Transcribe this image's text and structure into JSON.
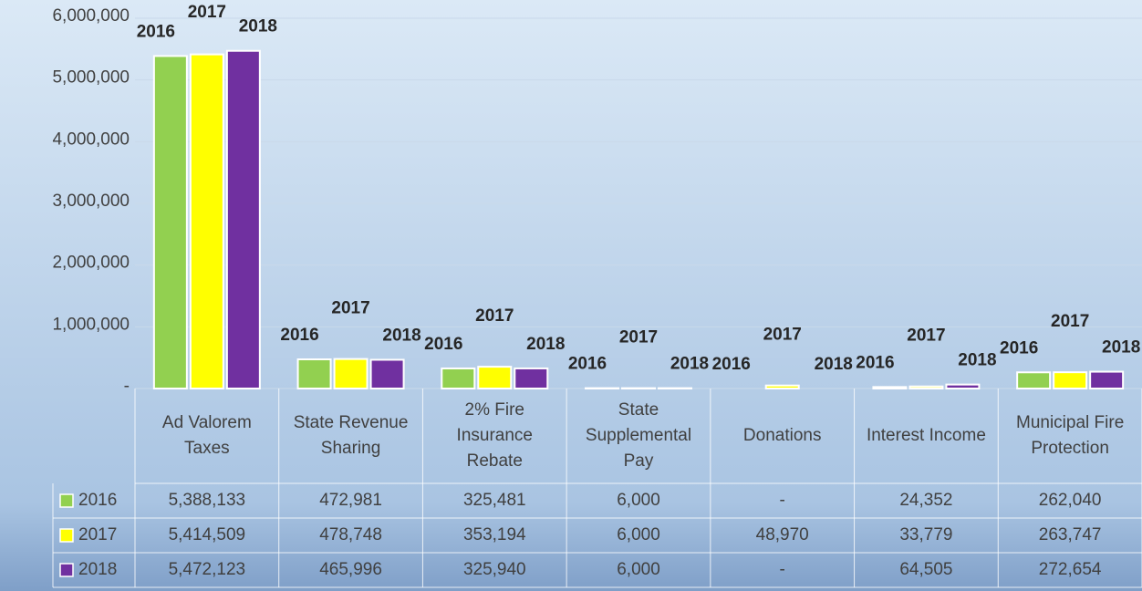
{
  "chart_data": {
    "type": "bar",
    "categories": [
      "Ad Valorem Taxes",
      "State Revenue Sharing",
      "2% Fire Insurance Rebate",
      "State Supplemental Pay",
      "Donations",
      "Interest Income",
      "Municipal Fire Protection"
    ],
    "series": [
      {
        "name": "2016",
        "color": "#92d050",
        "values": [
          5388133,
          472981,
          325481,
          6000,
          0,
          24352,
          262040
        ],
        "value_labels": [
          "5,388,133",
          "472,981",
          "325,481",
          "6,000",
          "-",
          "24,352",
          "262,040"
        ]
      },
      {
        "name": "2017",
        "color": "#ffff00",
        "values": [
          5414509,
          478748,
          353194,
          6000,
          48970,
          33779,
          263747
        ],
        "value_labels": [
          "5,414,509",
          "478,748",
          "353,194",
          "6,000",
          "48,970",
          "33,779",
          "263,747"
        ]
      },
      {
        "name": "2018",
        "color": "#7030a0",
        "values": [
          5472123,
          465996,
          325940,
          6000,
          0,
          64505,
          272654
        ],
        "value_labels": [
          "5,472,123",
          "465,996",
          "325,940",
          "6,000",
          "-",
          "64,505",
          "272,654"
        ]
      }
    ],
    "ylim": [
      0,
      6000000
    ],
    "yticks": [
      {
        "value": 0,
        "label": "-"
      },
      {
        "value": 1000000,
        "label": "1,000,000"
      },
      {
        "value": 2000000,
        "label": "2,000,000"
      },
      {
        "value": 3000000,
        "label": "3,000,000"
      },
      {
        "value": 4000000,
        "label": "4,000,000"
      },
      {
        "value": 5000000,
        "label": "5,000,000"
      },
      {
        "value": 6000000,
        "label": "6,000,000"
      }
    ],
    "grid": true
  }
}
